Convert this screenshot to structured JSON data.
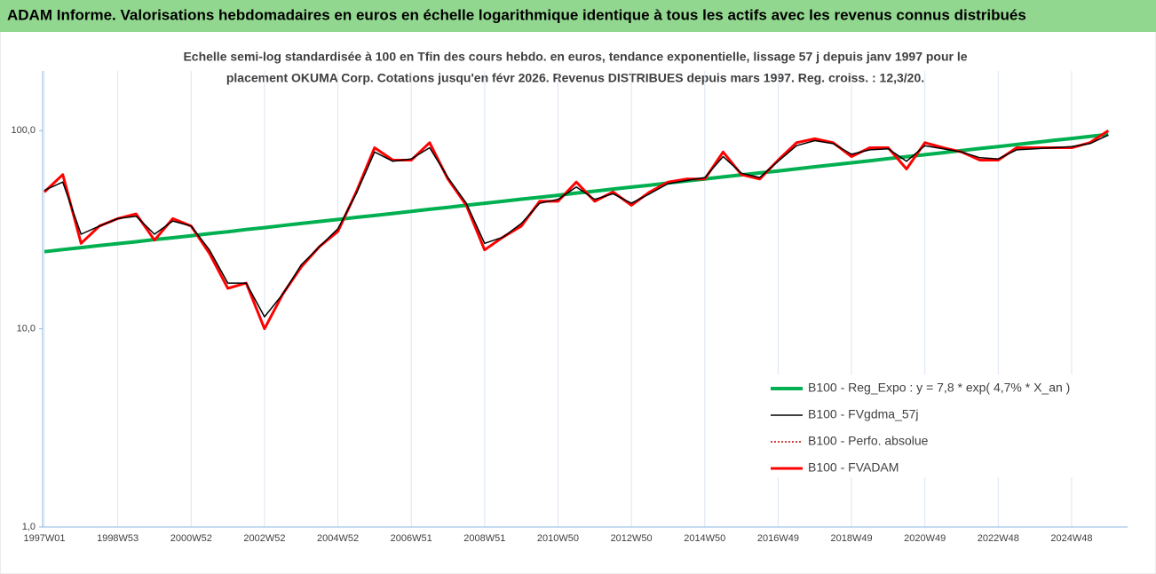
{
  "chart_data": {
    "type": "line",
    "title": "ADAM Informe. Valorisations hebdomadaires en euros en échelle logarithmique identique à tous les actifs avec les revenus connus distribués",
    "subtitle": [
      "Echelle semi-log standardisée à 100 en Tfin des cours hebdo. en euros, tendance exponentielle, lissage 57 j depuis janv 1997 pour le",
      "placement OKUMA Corp. Cotations jusqu'en févr 2026. Revenus DISTRIBUES depuis mars 1997. Reg. croiss. : 12,3/20."
    ],
    "log_scale": true,
    "ylim": [
      1,
      200
    ],
    "yticks": [
      {
        "value": 1,
        "label": "1,0"
      },
      {
        "value": 10,
        "label": "10,0"
      },
      {
        "value": 100,
        "label": "100,0"
      }
    ],
    "categories": [
      "1997W01",
      null,
      null,
      null,
      "1998W53",
      null,
      null,
      null,
      "2000W52",
      null,
      null,
      null,
      "2002W52",
      null,
      null,
      null,
      "2004W52",
      null,
      null,
      null,
      "2006W51",
      null,
      null,
      null,
      "2008W51",
      null,
      null,
      null,
      "2010W50",
      null,
      null,
      null,
      "2012W50",
      null,
      null,
      null,
      "2014W50",
      null,
      null,
      null,
      "2016W49",
      null,
      null,
      null,
      "2018W49",
      null,
      null,
      null,
      "2020W49",
      null,
      null,
      null,
      "2022W48",
      null,
      null,
      null,
      "2024W48",
      null,
      null
    ],
    "series": [
      {
        "name": "B100 - Reg_Expo : y = 7,8 * exp( 4,7% *  X_an )",
        "color": "#00b050",
        "width": 4,
        "dashed": false,
        "values": [
          24.5,
          25.1,
          25.7,
          26.3,
          26.9,
          27.5,
          28.2,
          28.8,
          29.5,
          30.2,
          30.9,
          31.7,
          32.4,
          33.2,
          34.0,
          34.8,
          35.6,
          36.5,
          37.3,
          38.2,
          39.1,
          40.1,
          41.0,
          42.0,
          43.0,
          44.0,
          45.1,
          46.1,
          47.2,
          48.4,
          49.5,
          50.7,
          51.9,
          53.1,
          54.4,
          55.7,
          57.0,
          58.4,
          59.8,
          61.2,
          62.6,
          64.1,
          65.7,
          67.2,
          68.8,
          70.5,
          72.2,
          73.9,
          75.6,
          77.4,
          79.3,
          81.2,
          83.1,
          85.1,
          87.1,
          89.2,
          91.3,
          93.5,
          95.7
        ]
      },
      {
        "name": "B100 - FVgdma_57j",
        "color": "#000000",
        "width": 1.5,
        "dashed": false,
        "values": [
          50,
          55,
          30,
          33,
          36,
          37,
          30,
          35,
          33,
          25,
          17,
          17,
          11.5,
          15,
          21,
          26,
          32,
          48,
          78,
          70,
          72,
          82,
          58,
          43,
          27,
          29,
          34,
          43,
          45,
          52,
          45,
          48,
          43,
          48,
          54,
          56,
          58,
          74,
          61,
          58,
          70,
          84,
          89,
          86,
          76,
          80,
          81,
          70,
          84,
          81,
          78,
          73,
          72,
          80,
          81,
          82,
          83,
          86,
          95
        ]
      },
      {
        "name": "B100 - Perfo. absolue",
        "color": "#c00000",
        "width": 1.5,
        "dashed": true,
        "values": [
          49,
          60,
          27,
          33,
          36,
          38,
          28,
          36,
          33,
          24,
          16,
          17,
          10,
          15,
          20.5,
          26,
          31,
          49,
          82,
          71,
          71,
          87,
          57,
          42,
          25,
          29,
          33,
          44,
          44,
          55,
          44,
          49,
          42,
          49,
          55,
          57,
          57,
          78,
          60,
          57,
          71,
          87,
          91,
          87,
          74,
          82,
          82,
          64,
          87,
          82,
          78,
          71,
          71,
          82,
          82,
          82,
          82,
          87,
          100
        ]
      },
      {
        "name": "B100 - FVADAM",
        "color": "#ff0000",
        "width": 3,
        "dashed": false,
        "values": [
          49,
          60,
          27,
          33,
          36,
          38,
          28,
          36,
          33,
          24,
          16,
          17,
          10,
          15,
          20.5,
          26,
          31,
          49,
          82,
          71,
          71,
          87,
          57,
          42,
          25,
          29,
          33,
          44,
          44,
          55,
          44,
          49,
          42,
          49,
          55,
          57,
          57,
          78,
          60,
          57,
          71,
          87,
          91,
          87,
          74,
          82,
          82,
          64,
          87,
          82,
          78,
          71,
          71,
          82,
          82,
          82,
          82,
          87,
          100
        ]
      }
    ],
    "draw_order": [
      0,
      2,
      3,
      1
    ]
  }
}
